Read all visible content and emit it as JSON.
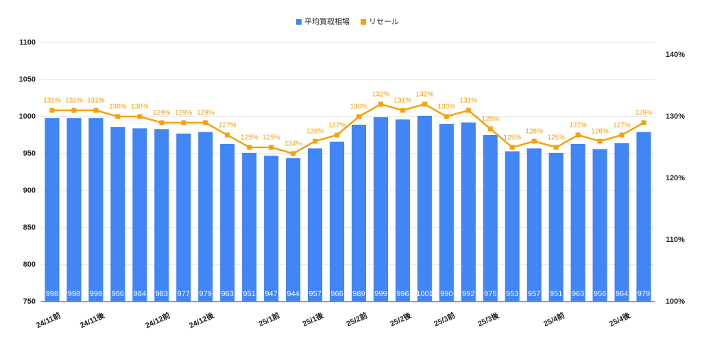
{
  "chart_data": {
    "type": "bar-line",
    "categories": [
      "24/11前",
      null,
      "24/11後",
      null,
      null,
      "24/12前",
      null,
      "24/12後",
      null,
      null,
      "25/1前",
      null,
      "25/1後",
      null,
      "25/2前",
      null,
      "25/2後",
      null,
      "25/3前",
      null,
      "25/3後",
      null,
      null,
      "25/4前",
      null,
      null,
      "25/4後",
      null
    ],
    "series": [
      {
        "name": "平均買取相場",
        "color": "#4285f4",
        "type": "bar",
        "values": [
          998,
          998,
          998,
          986,
          984,
          983,
          977,
          979,
          963,
          951,
          947,
          944,
          957,
          966,
          989,
          999,
          996,
          1001,
          990,
          992,
          975,
          953,
          957,
          951,
          963,
          956,
          964,
          979
        ]
      },
      {
        "name": "リセール",
        "color": "#f4a10b",
        "type": "line",
        "axis": "y2",
        "values": [
          131,
          131,
          131,
          130,
          130,
          129,
          129,
          129,
          127,
          125,
          125,
          124,
          126,
          127,
          130,
          132,
          131,
          132,
          130,
          131,
          128,
          125,
          126,
          125,
          127,
          126,
          127,
          129
        ],
        "value_labels": [
          "131%",
          "131%",
          "131%",
          "130%",
          "130%",
          "129%",
          "129%",
          "129%",
          "127%",
          "125%",
          "125%",
          "124%",
          "126%",
          "127%",
          "130%",
          "132%",
          "131%",
          "132%",
          "130%",
          "131%",
          "128%",
          "125%",
          "126%",
          "125%",
          "127%",
          "126%",
          "127%",
          "129%"
        ]
      }
    ],
    "ylim": [
      750,
      1100
    ],
    "yticks": [
      750,
      800,
      850,
      900,
      950,
      1000,
      1050,
      1100
    ],
    "y2lim": [
      100,
      142
    ],
    "y2ticks": [
      {
        "value": 100,
        "label": "100%"
      },
      {
        "value": 110,
        "label": "110%"
      },
      {
        "value": 120,
        "label": "120%"
      },
      {
        "value": 130,
        "label": "130%"
      },
      {
        "value": 140,
        "label": "140%"
      }
    ],
    "grid": true,
    "legend": "top"
  }
}
